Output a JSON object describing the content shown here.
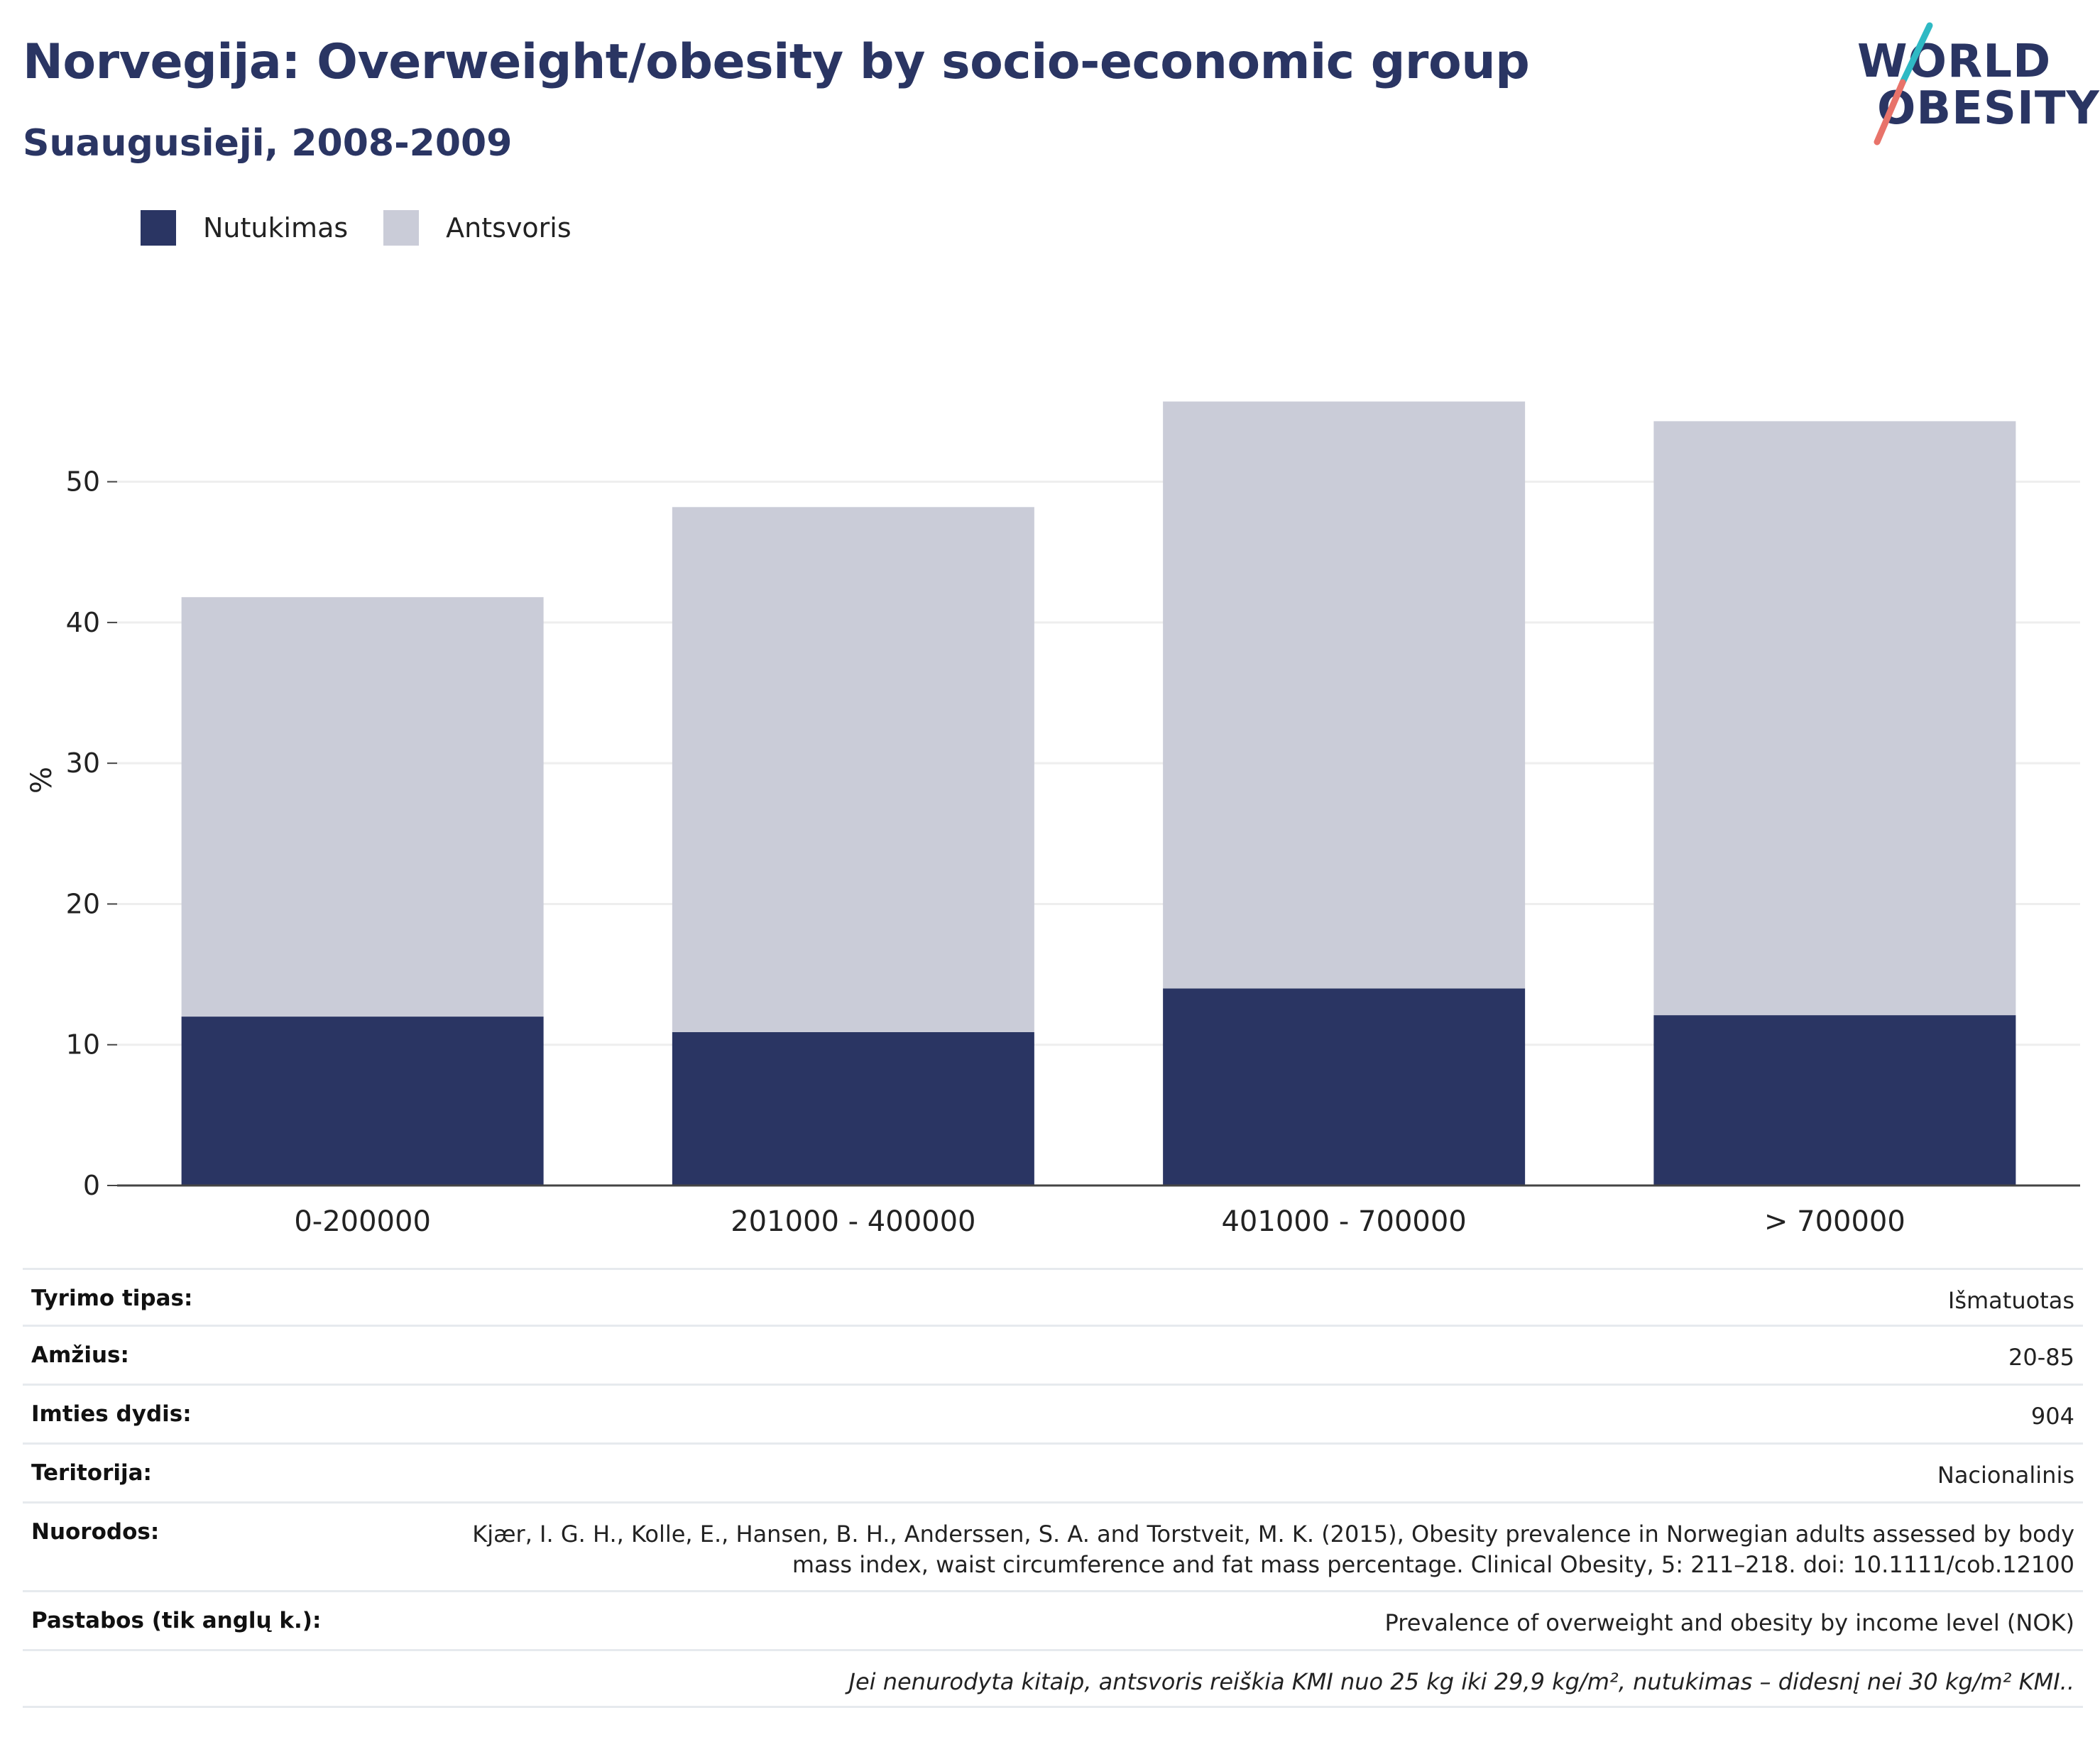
{
  "header": {
    "title": "Norvegija: Overweight/obesity by socio-economic group",
    "subtitle": "Suaugusieji, 2008-2009"
  },
  "logo": {
    "line1": "WORLD",
    "line2": "OBESITY",
    "colors": {
      "text": "#2a3563",
      "slash_top": "#2fb9c4",
      "slash_bottom": "#e8736a"
    }
  },
  "colors": {
    "obesity": "#2a3563",
    "overweight": "#caccd8",
    "grid": "#eeeeee",
    "axis": "#444444"
  },
  "chart_data": {
    "type": "bar",
    "stacked": true,
    "categories": [
      "0-200000",
      "201000 - 400000",
      "401000 - 700000",
      "> 700000"
    ],
    "series": [
      {
        "name": "Nutukimas",
        "values": [
          12.0,
          10.9,
          14.0,
          12.1
        ],
        "color": "#2a3563"
      },
      {
        "name": "Antsvoris",
        "values": [
          29.8,
          37.3,
          41.7,
          42.2
        ],
        "color": "#caccd8"
      }
    ],
    "ylabel": "%",
    "xlabel": "",
    "ylim": [
      0,
      58
    ],
    "yticks": [
      0,
      10,
      20,
      30,
      40,
      50
    ],
    "grid": true,
    "legend_position": "top-left"
  },
  "info_table": [
    {
      "label": "Tyrimo tipas:",
      "value": "Išmatuotas"
    },
    {
      "label": "Amžius:",
      "value": "20-85"
    },
    {
      "label": "Imties dydis:",
      "value": "904"
    },
    {
      "label": "Teritorija:",
      "value": "Nacionalinis"
    },
    {
      "label": "Nuorodos:",
      "value": "Kjær, I. G. H., Kolle, E., Hansen, B. H., Anderssen, S. A. and Torstveit, M. K. (2015), Obesity prevalence in Norwegian adults assessed by body mass index, waist circumference and fat mass percentage. Clinical Obesity, 5: 211–218. doi: 10.1111/cob.12100"
    },
    {
      "label": "Pastabos (tik anglų k.):",
      "value": "Prevalence of overweight and obesity by income level (NOK)"
    }
  ],
  "footnote": "Jei nenurodyta kitaip, antsvoris reiškia KMI nuo 25 kg iki 29,9 kg/m², nutukimas – didesnį nei 30 kg/m² KMI.."
}
